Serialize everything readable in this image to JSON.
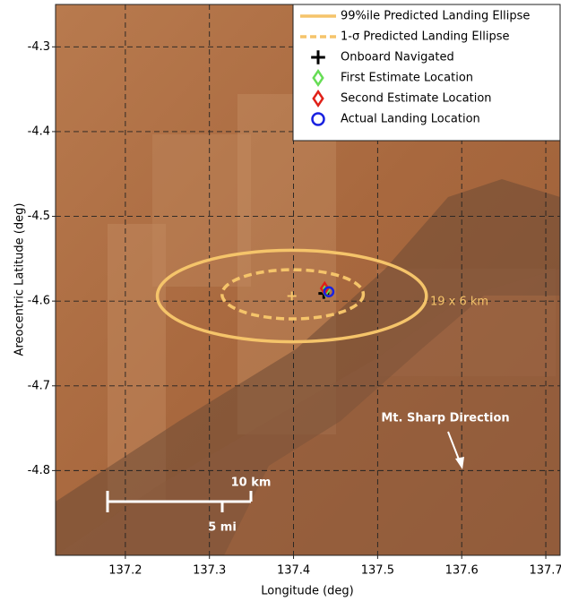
{
  "chart_data": {
    "type": "scatter",
    "x_label": "Longitude (deg)",
    "y_label": "Areocentric Latitude (deg)",
    "xlim": [
      137.117,
      137.717
    ],
    "ylim": [
      -4.9,
      -4.25
    ],
    "xticks": [
      137.2,
      137.3,
      137.4,
      137.5,
      137.6,
      137.7
    ],
    "yticks": [
      -4.3,
      -4.4,
      -4.5,
      -4.6,
      -4.7,
      -4.8
    ],
    "grid": true,
    "legend": "upper right",
    "series": [
      {
        "name": "99%ile Predicted Landing Ellipse",
        "color": "#f5c46a",
        "marker": "ellipse",
        "dashed": false,
        "x": [
          137.398
        ],
        "values": [
          -4.594
        ],
        "x_half_width": 0.16,
        "y_half_height": 0.054
      },
      {
        "name": "1-σ Predicted Landing Ellipse",
        "color": "#f5c46a",
        "marker": "ellipse",
        "dashed": true,
        "x": [
          137.399
        ],
        "values": [
          -4.592
        ],
        "x_half_width": 0.084,
        "y_half_height": 0.029
      },
      {
        "name": "Onboard Navigated",
        "color": "#000000",
        "marker": "plus",
        "x": [
          137.436
        ],
        "values": [
          -4.591
        ]
      },
      {
        "name": "First Estimate Location",
        "color": "#66dd55",
        "marker": "diamond",
        "x": [
          137.438
        ],
        "values": [
          -4.587
        ]
      },
      {
        "name": "Second Estimate Location",
        "color": "#e02018",
        "marker": "diamond",
        "x": [
          137.437
        ],
        "values": [
          -4.585
        ]
      },
      {
        "name": "Actual Landing Location",
        "color": "#1a22e0",
        "marker": "circle",
        "x": [
          137.442
        ],
        "values": [
          -4.589
        ]
      }
    ],
    "annotations": [
      "19 x 6 km",
      "Mt. Sharp Direction",
      "10 km",
      "5 mi"
    ]
  }
}
